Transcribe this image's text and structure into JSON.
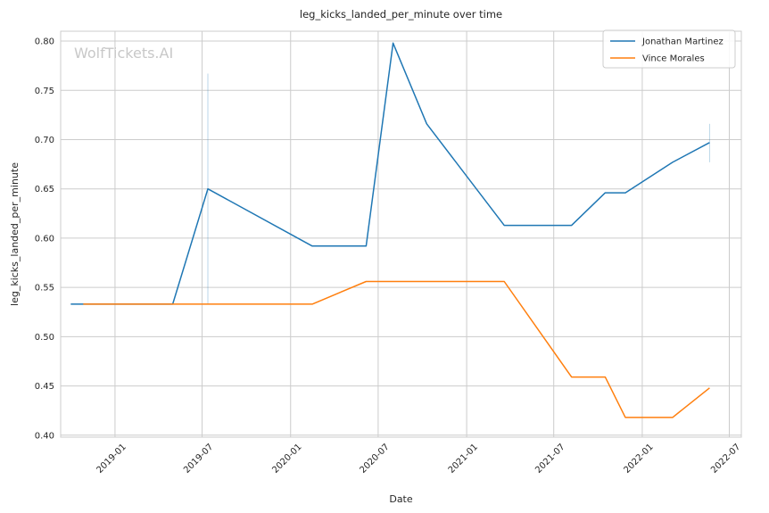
{
  "chart_data": {
    "type": "line",
    "title": "leg_kicks_landed_per_minute over time",
    "xlabel": "Date",
    "ylabel": "leg_kicks_landed_per_minute",
    "watermark": "WolfTickets.AI",
    "x_ticks": [
      "2019-01",
      "2019-07",
      "2020-01",
      "2020-07",
      "2021-01",
      "2021-07",
      "2022-01",
      "2022-07"
    ],
    "y_ticks": [
      "0.40",
      "0.45",
      "0.50",
      "0.55",
      "0.60",
      "0.65",
      "0.70",
      "0.75",
      "0.80"
    ],
    "xlim": [
      "2018-09-10",
      "2022-07-26"
    ],
    "ylim": [
      0.398,
      0.81
    ],
    "grid": true,
    "legend_position": "top-right",
    "series": [
      {
        "name": "Jonathan Martinez",
        "color": "#1f77b4",
        "points": [
          {
            "x": "2018-10-01",
            "y": 0.533
          },
          {
            "x": "2019-05-01",
            "y": 0.533
          },
          {
            "x": "2019-07-13",
            "y": 0.65
          },
          {
            "x": "2020-02-15",
            "y": 0.592
          },
          {
            "x": "2020-06-06",
            "y": 0.592
          },
          {
            "x": "2020-08-01",
            "y": 0.798
          },
          {
            "x": "2020-10-10",
            "y": 0.716
          },
          {
            "x": "2021-03-20",
            "y": 0.613
          },
          {
            "x": "2021-08-07",
            "y": 0.613
          },
          {
            "x": "2021-10-16",
            "y": 0.646
          },
          {
            "x": "2021-11-27",
            "y": 0.646
          },
          {
            "x": "2022-03-05",
            "y": 0.677
          },
          {
            "x": "2022-05-21",
            "y": 0.697
          }
        ],
        "ci_bars": [
          {
            "x": "2019-07-13",
            "low": 0.533,
            "high": 0.767
          },
          {
            "x": "2022-05-21",
            "low": 0.677,
            "high": 0.716
          }
        ]
      },
      {
        "name": "Vince Morales",
        "color": "#ff7f0e",
        "points": [
          {
            "x": "2018-10-27",
            "y": 0.533
          },
          {
            "x": "2020-02-15",
            "y": 0.533
          },
          {
            "x": "2020-06-06",
            "y": 0.556
          },
          {
            "x": "2021-03-20",
            "y": 0.556
          },
          {
            "x": "2021-08-07",
            "y": 0.459
          },
          {
            "x": "2021-10-16",
            "y": 0.459
          },
          {
            "x": "2021-11-27",
            "y": 0.418
          },
          {
            "x": "2022-03-05",
            "y": 0.418
          },
          {
            "x": "2022-05-21",
            "y": 0.448
          }
        ]
      }
    ]
  }
}
